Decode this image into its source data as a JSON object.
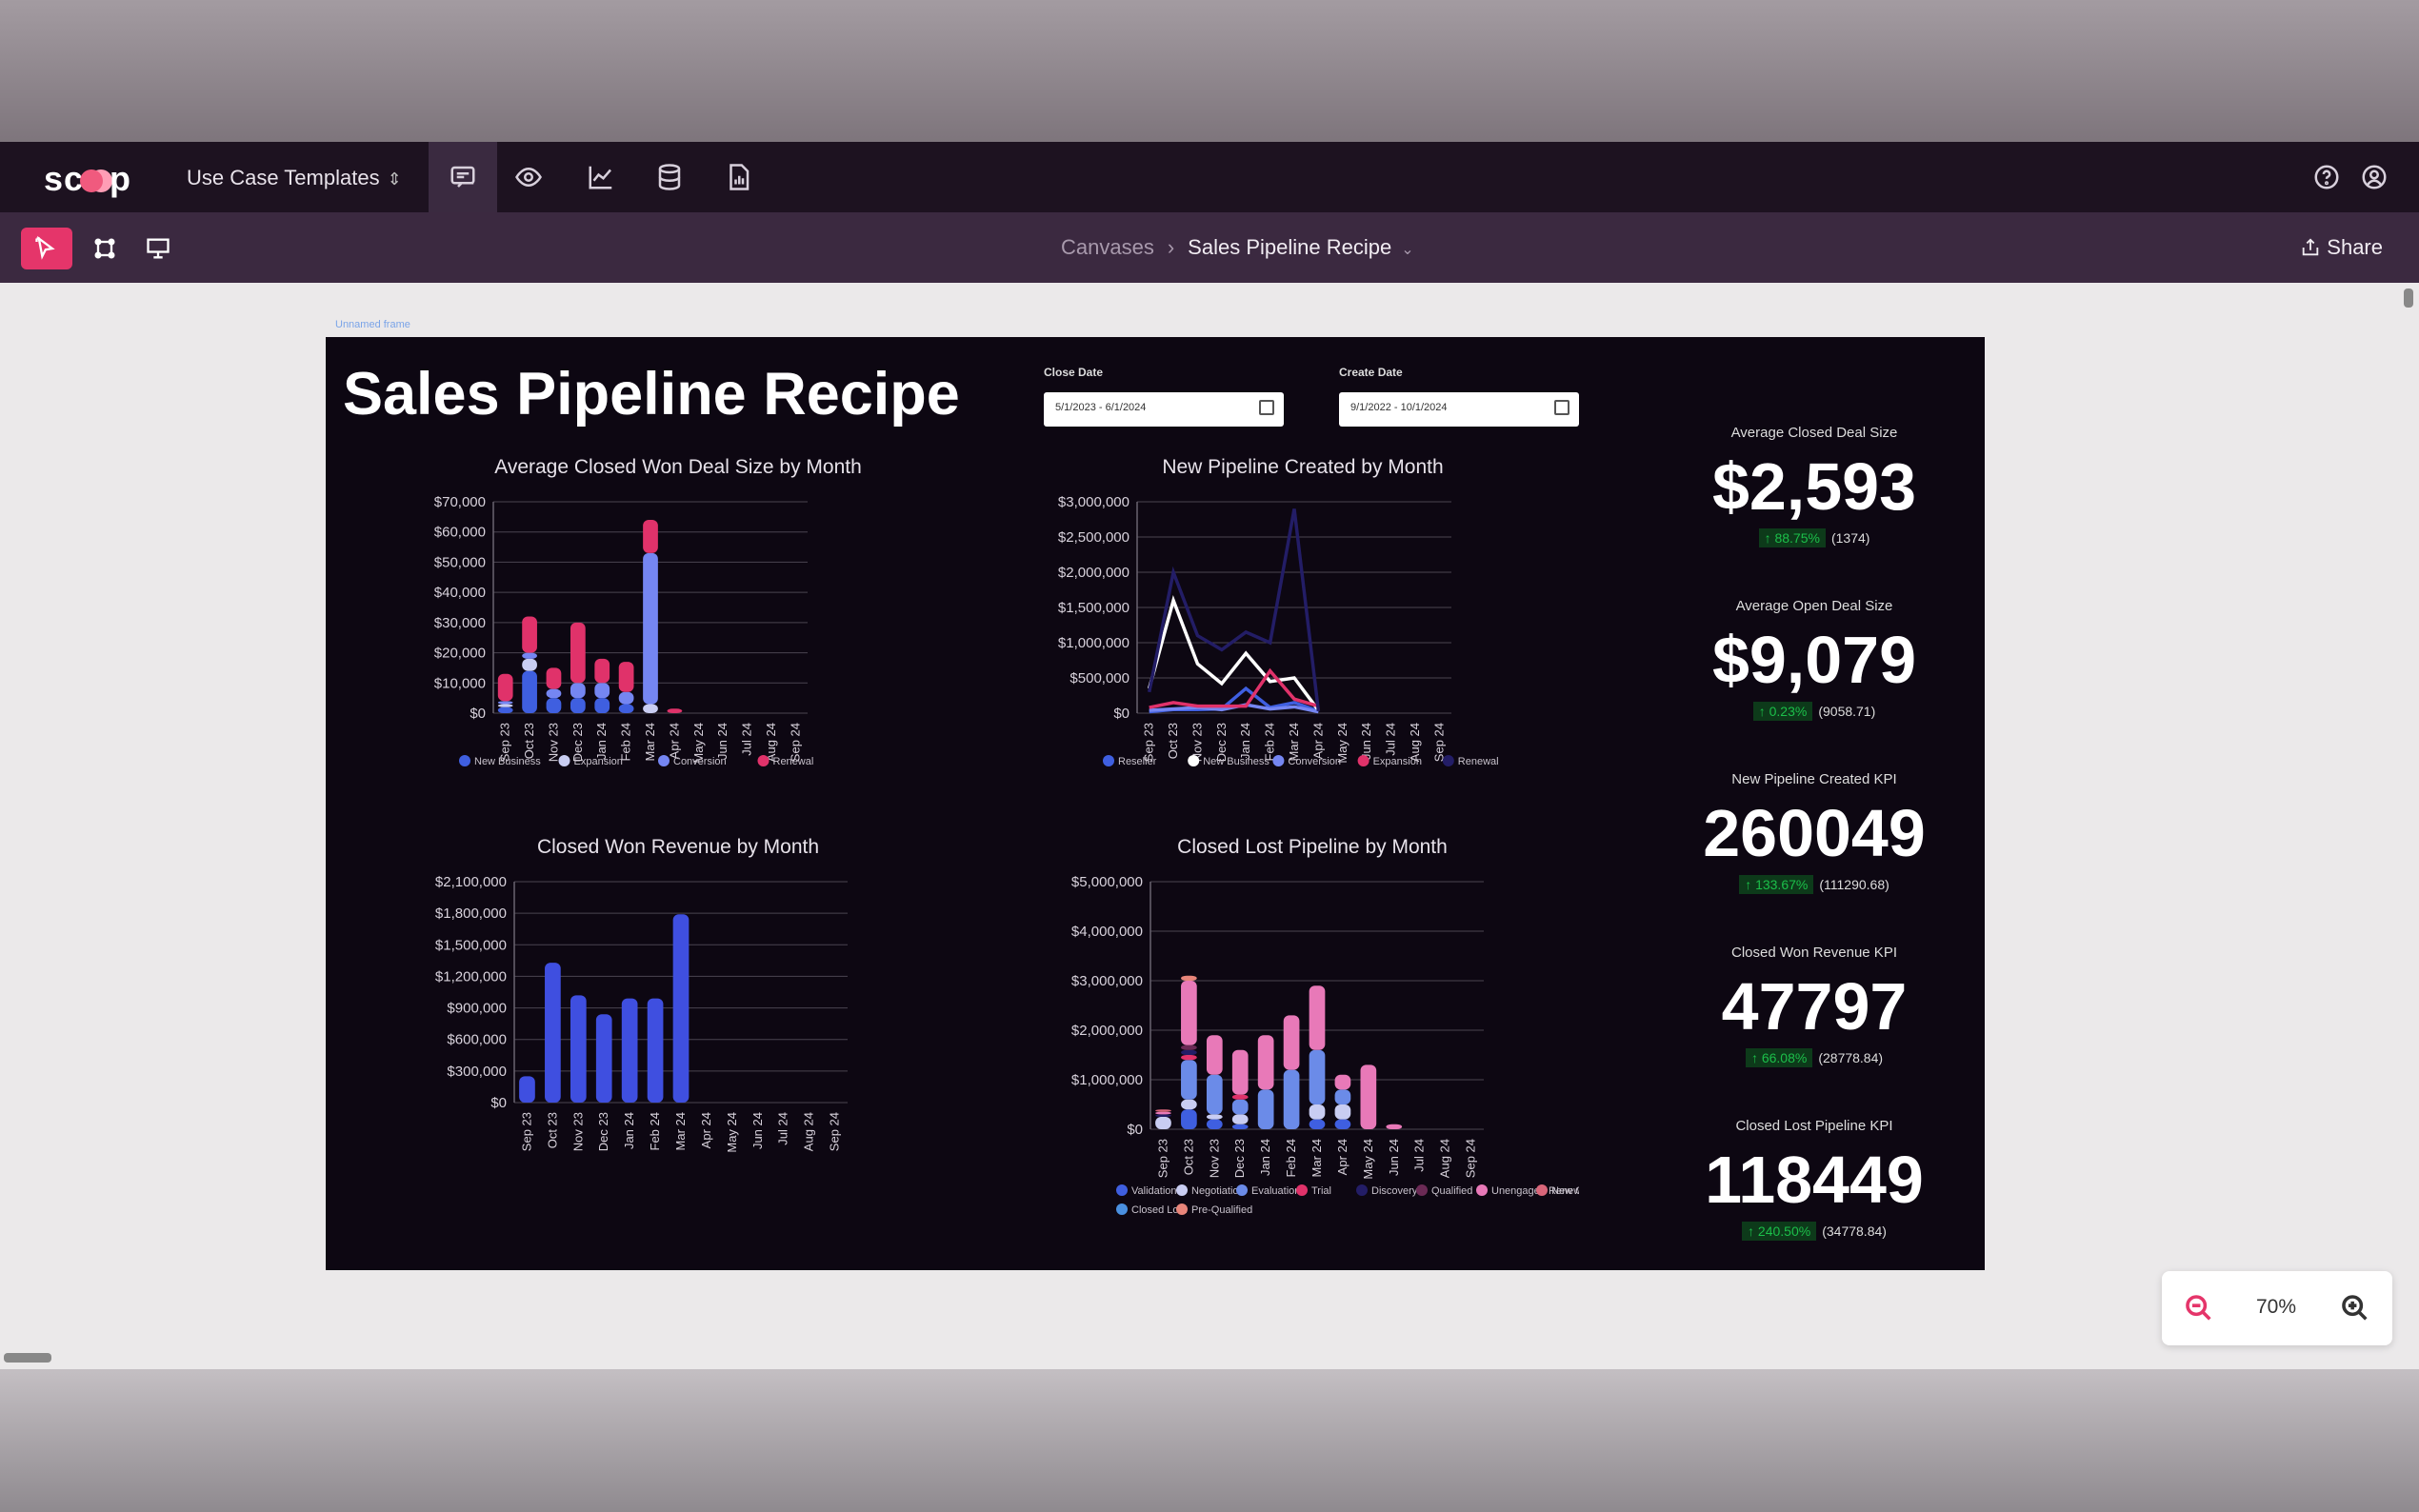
{
  "app": {
    "logo": "scoop",
    "template_selector": "Use Case Templates"
  },
  "topbar_icons": [
    "chat-canvas-icon",
    "eye-icon",
    "line-chart-icon",
    "database-icon",
    "report-icon",
    "help-icon",
    "account-icon"
  ],
  "toolbar": {
    "tools": [
      "select-tool-icon",
      "frame-tool-icon",
      "presentation-tool-icon"
    ],
    "breadcrumb": {
      "parent": "Canvases",
      "current": "Sales Pipeline Recipe"
    },
    "share_label": "Share"
  },
  "canvas": {
    "frame_label": "Unnamed frame",
    "title": "Sales Pipeline Recipe",
    "filters": [
      {
        "label": "Close Date",
        "value": "5/1/2023 - 6/1/2024"
      },
      {
        "label": "Create Date",
        "value": "9/1/2022 - 10/1/2024"
      }
    ],
    "kpis": [
      {
        "label": "Average Closed Deal Size",
        "value": "$2,593",
        "change": "↑ 88.75%",
        "sub": "(1374)"
      },
      {
        "label": "Average Open Deal Size",
        "value": "$9,079",
        "change": "↑ 0.23%",
        "sub": "(9058.71)"
      },
      {
        "label": "New Pipeline Created KPI",
        "value": "260049",
        "change": "↑ 133.67%",
        "sub": "(111290.68)"
      },
      {
        "label": "Closed Won Revenue KPI",
        "value": "47797",
        "change": "↑ 66.08%",
        "sub": "(28778.84)"
      },
      {
        "label": "Closed Lost Pipeline KPI",
        "value": "118449",
        "change": "↑ 240.50%",
        "sub": "(34778.84)"
      }
    ]
  },
  "zoom": {
    "level": "70%"
  },
  "colors": {
    "accent": "#e5356a",
    "canvas_bg": "#0d0712",
    "topbar": "#1d1220",
    "toolbar": "#3b2940"
  },
  "chart_data": [
    {
      "id": "avg-deal",
      "type": "bar",
      "stacked": true,
      "title": "Average Closed Won Deal Size by Month",
      "categories": [
        "Sep 23",
        "Oct 23",
        "Nov 23",
        "Dec 23",
        "Jan 24",
        "Feb 24",
        "Mar 24",
        "Apr 24",
        "May 24",
        "Jun 24",
        "Jul 24",
        "Aug 24",
        "Sep 24"
      ],
      "yticks": [
        "$0",
        "$10,000",
        "$20,000",
        "$30,000",
        "$40,000",
        "$50,000",
        "$60,000",
        "$70,000"
      ],
      "ylim": [
        0,
        70000
      ],
      "series": [
        {
          "name": "New Business",
          "color": "#3f5fe0",
          "values": [
            2000,
            14000,
            5000,
            5000,
            5000,
            3000,
            0,
            0,
            0,
            0,
            0,
            0,
            0
          ]
        },
        {
          "name": "Expansion",
          "color": "#c9cdf2",
          "values": [
            1000,
            4000,
            0,
            0,
            0,
            0,
            3000,
            0,
            0,
            0,
            0,
            0,
            0
          ]
        },
        {
          "name": "Conversion",
          "color": "#7586f2",
          "values": [
            1000,
            2000,
            3000,
            5000,
            5000,
            4000,
            50000,
            0,
            0,
            0,
            0,
            0,
            0
          ]
        },
        {
          "name": "Renewal",
          "color": "#e0326a",
          "values": [
            9000,
            12000,
            7000,
            20000,
            8000,
            10000,
            11000,
            1500,
            0,
            0,
            0,
            0,
            0
          ]
        }
      ]
    },
    {
      "id": "new-pipe",
      "type": "line",
      "title": "New Pipeline Created by Month",
      "categories": [
        "Sep 23",
        "Oct 23",
        "Nov 23",
        "Dec 23",
        "Jan 24",
        "Feb 24",
        "Mar 24",
        "Apr 24",
        "May 24",
        "Jun 24",
        "Jul 24",
        "Aug 24",
        "Sep 24"
      ],
      "yticks": [
        "$0",
        "$500,000",
        "$1,000,000",
        "$1,500,000",
        "$2,000,000",
        "$2,500,000",
        "$3,000,000"
      ],
      "ylim": [
        0,
        3000000
      ],
      "series": [
        {
          "name": "Reseller",
          "color": "#3f5fe0",
          "values": [
            20000,
            50000,
            50000,
            60000,
            350000,
            80000,
            150000,
            30000,
            0,
            0,
            0,
            0,
            0
          ]
        },
        {
          "name": "New Business",
          "color": "#ffffff",
          "values": [
            350000,
            1600000,
            700000,
            420000,
            850000,
            450000,
            500000,
            40000,
            0,
            0,
            0,
            0,
            0
          ]
        },
        {
          "name": "Conversion",
          "color": "#7586f2",
          "values": [
            40000,
            60000,
            80000,
            50000,
            120000,
            60000,
            90000,
            20000,
            0,
            0,
            0,
            0,
            0
          ]
        },
        {
          "name": "Expansion",
          "color": "#e0326a",
          "values": [
            80000,
            150000,
            100000,
            100000,
            100000,
            600000,
            200000,
            100000,
            0,
            0,
            0,
            0,
            0
          ]
        },
        {
          "name": "Renewal",
          "color": "#231d66",
          "values": [
            300000,
            2000000,
            1100000,
            900000,
            1150000,
            1000000,
            2900000,
            30000,
            0,
            0,
            0,
            0,
            0
          ]
        }
      ]
    },
    {
      "id": "won-rev",
      "type": "bar",
      "title": "Closed Won Revenue by Month",
      "categories": [
        "Sep 23",
        "Oct 23",
        "Nov 23",
        "Dec 23",
        "Jan 24",
        "Feb 24",
        "Mar 24",
        "Apr 24",
        "May 24",
        "Jun 24",
        "Jul 24",
        "Aug 24",
        "Sep 24"
      ],
      "yticks": [
        "$0",
        "$300,000",
        "$600,000",
        "$900,000",
        "$1,200,000",
        "$1,500,000",
        "$1,800,000",
        "$2,100,000"
      ],
      "ylim": [
        0,
        2100000
      ],
      "series": [
        {
          "name": "Closed Won Revenue",
          "color": "#3f4fe0",
          "values": [
            250000,
            1330000,
            1020000,
            840000,
            990000,
            990000,
            1790000,
            0,
            0,
            0,
            0,
            0,
            0
          ]
        }
      ]
    },
    {
      "id": "lost-pipe",
      "type": "bar",
      "stacked": true,
      "title": "Closed Lost Pipeline by Month",
      "categories": [
        "Sep 23",
        "Oct 23",
        "Nov 23",
        "Dec 23",
        "Jan 24",
        "Feb 24",
        "Mar 24",
        "Apr 24",
        "May 24",
        "Jun 24",
        "Jul 24",
        "Aug 24",
        "Sep 24"
      ],
      "yticks": [
        "$0",
        "$1,000,000",
        "$2,000,000",
        "$3,000,000",
        "$4,000,000",
        "$5,000,000"
      ],
      "ylim": [
        0,
        5000000
      ],
      "series": [
        {
          "name": "Validation",
          "color": "#3f5fe0",
          "values": [
            0,
            400000,
            200000,
            100000,
            0,
            0,
            200000,
            200000,
            0,
            0,
            0,
            0,
            0
          ]
        },
        {
          "name": "Negotiation",
          "color": "#c9cdf2",
          "values": [
            250000,
            200000,
            100000,
            200000,
            0,
            0,
            300000,
            300000,
            0,
            0,
            0,
            0,
            0
          ]
        },
        {
          "name": "Evaluation",
          "color": "#6b8be8",
          "values": [
            0,
            800000,
            800000,
            300000,
            800000,
            1200000,
            1100000,
            300000,
            0,
            0,
            0,
            0,
            0
          ]
        },
        {
          "name": "Trial",
          "color": "#e0326a",
          "values": [
            0,
            100000,
            0,
            100000,
            0,
            0,
            0,
            0,
            0,
            0,
            0,
            0,
            0
          ]
        },
        {
          "name": "Discovery",
          "color": "#231d66",
          "values": [
            50000,
            100000,
            0,
            0,
            0,
            0,
            0,
            0,
            0,
            0,
            0,
            0,
            0
          ]
        },
        {
          "name": "Qualified",
          "color": "#6b2a55",
          "values": [
            0,
            100000,
            0,
            0,
            0,
            0,
            0,
            0,
            0,
            0,
            0,
            0,
            0
          ]
        },
        {
          "name": "Unengaged Renewal",
          "color": "#e879b8",
          "values": [
            50000,
            1300000,
            800000,
            900000,
            1100000,
            1100000,
            1300000,
            300000,
            1300000,
            100000,
            0,
            0,
            0
          ]
        },
        {
          "name": "New Case",
          "color": "#d9667a",
          "values": [
            50000,
            0,
            0,
            0,
            0,
            0,
            0,
            0,
            0,
            0,
            0,
            0,
            0
          ]
        },
        {
          "name": "Closed Lost",
          "color": "#4a90e0",
          "values": [
            0,
            0,
            0,
            0,
            0,
            0,
            0,
            0,
            0,
            0,
            0,
            0,
            0
          ]
        },
        {
          "name": "Pre-Qualified",
          "color": "#e8857a",
          "values": [
            0,
            100000,
            0,
            0,
            0,
            0,
            0,
            0,
            0,
            0,
            0,
            0,
            0
          ]
        }
      ]
    }
  ]
}
